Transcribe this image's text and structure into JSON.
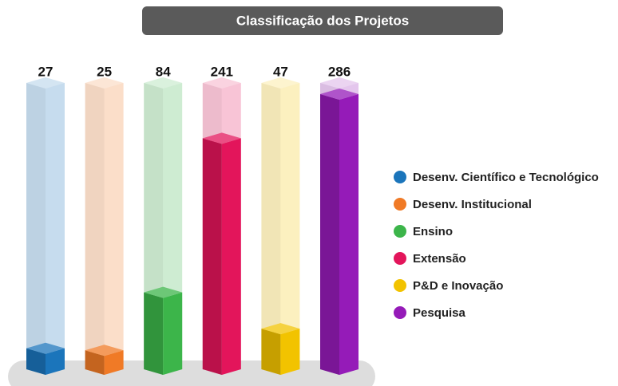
{
  "chart_data": {
    "type": "bar3d",
    "title": "Classificação dos Projetos",
    "categories": [
      "Desenv. Científico e Tecnológico",
      "Desenv. Institucional",
      "Ensino",
      "Extensão",
      "P&D e Inovação",
      "Pesquisa"
    ],
    "values": [
      27,
      25,
      84,
      241,
      47,
      286
    ],
    "colors": [
      "#1b75bb",
      "#f07a26",
      "#3cb54a",
      "#e3155b",
      "#f2c300",
      "#951bb8"
    ],
    "legend": "right"
  }
}
